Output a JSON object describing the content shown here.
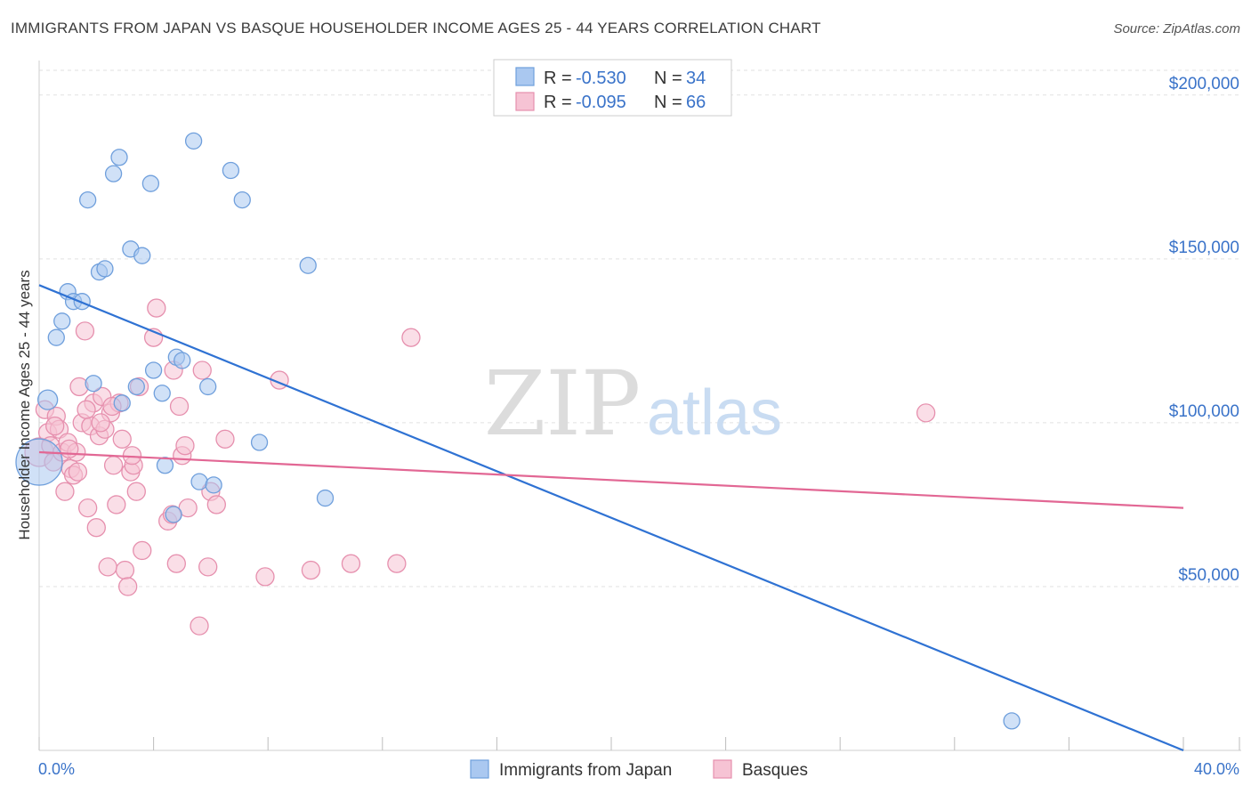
{
  "title": "IMMIGRANTS FROM JAPAN VS BASQUE HOUSEHOLDER INCOME AGES 25 - 44 YEARS CORRELATION CHART",
  "source": "Source: ZipAtlas.com",
  "watermark": {
    "zip": "ZIP",
    "atlas": "atlas"
  },
  "colors": {
    "japan_fill": "#aac8f0",
    "japan_stroke": "#6f9fdc",
    "japan_line": "#2f72d3",
    "basque_fill": "#f6c3d4",
    "basque_stroke": "#e690ae",
    "basque_line": "#e26794",
    "axis_label": "#3a73c9",
    "grid": "#e2e2e2"
  },
  "legend": {
    "r_label": "R =",
    "n_label": "N =",
    "rows": [
      {
        "series": "japan",
        "r": "-0.530",
        "n": "34"
      },
      {
        "series": "basque",
        "r": "-0.095",
        "n": "66"
      }
    ]
  },
  "chart_data": {
    "type": "scatter",
    "title": "IMMIGRANTS FROM JAPAN VS BASQUE HOUSEHOLDER INCOME AGES 25 - 44 YEARS CORRELATION CHART",
    "xlabel": "",
    "ylabel": "Householder Income Ages 25 - 44 years",
    "xlim": [
      0,
      40
    ],
    "ylim": [
      0,
      210000
    ],
    "x_tick_labels": {
      "min": "0.0%",
      "max": "40.0%"
    },
    "y_ticks": [
      {
        "value": 50000,
        "label": "$50,000"
      },
      {
        "value": 100000,
        "label": "$100,000"
      },
      {
        "value": 150000,
        "label": "$150,000"
      },
      {
        "value": 200000,
        "label": "$200,000"
      }
    ],
    "grid": true,
    "series": [
      {
        "name": "Immigrants from Japan",
        "key": "japan",
        "trend": {
          "x0": 0,
          "y0": 142000,
          "x1": 40,
          "y1": 0
        },
        "points": [
          [
            0.0,
            88000,
            26
          ],
          [
            0.3,
            107000,
            11
          ],
          [
            0.6,
            126000,
            9
          ],
          [
            0.8,
            131000,
            9
          ],
          [
            1.0,
            140000,
            9
          ],
          [
            1.2,
            137000,
            9
          ],
          [
            1.5,
            137000,
            9
          ],
          [
            1.7,
            168000,
            9
          ],
          [
            1.9,
            112000,
            9
          ],
          [
            2.1,
            146000,
            9
          ],
          [
            2.3,
            147000,
            9
          ],
          [
            2.6,
            176000,
            9
          ],
          [
            2.8,
            181000,
            9
          ],
          [
            2.9,
            106000,
            9
          ],
          [
            3.2,
            153000,
            9
          ],
          [
            3.4,
            111000,
            9
          ],
          [
            3.6,
            151000,
            9
          ],
          [
            3.9,
            173000,
            9
          ],
          [
            4.0,
            116000,
            9
          ],
          [
            4.3,
            109000,
            9
          ],
          [
            4.4,
            87000,
            9
          ],
          [
            4.7,
            72000,
            9
          ],
          [
            4.8,
            120000,
            9
          ],
          [
            5.0,
            119000,
            9
          ],
          [
            5.4,
            186000,
            9
          ],
          [
            5.6,
            82000,
            9
          ],
          [
            5.9,
            111000,
            9
          ],
          [
            6.1,
            81000,
            9
          ],
          [
            6.7,
            177000,
            9
          ],
          [
            7.1,
            168000,
            9
          ],
          [
            7.7,
            94000,
            9
          ],
          [
            9.4,
            148000,
            9
          ],
          [
            10.0,
            77000,
            9
          ],
          [
            34.0,
            9000,
            9
          ]
        ]
      },
      {
        "name": "Basques",
        "key": "basque",
        "trend": {
          "x0": 0,
          "y0": 91000,
          "x1": 40,
          "y1": 74000
        },
        "points": [
          [
            0.0,
            91000,
            16
          ],
          [
            0.2,
            104000,
            10
          ],
          [
            0.3,
            97000,
            10
          ],
          [
            0.4,
            93000,
            10
          ],
          [
            0.5,
            88000,
            10
          ],
          [
            0.6,
            102000,
            10
          ],
          [
            0.7,
            98000,
            10
          ],
          [
            0.8,
            91000,
            10
          ],
          [
            0.9,
            79000,
            10
          ],
          [
            1.0,
            94000,
            10
          ],
          [
            1.1,
            86000,
            10
          ],
          [
            1.2,
            84000,
            10
          ],
          [
            1.3,
            91000,
            10
          ],
          [
            1.4,
            111000,
            10
          ],
          [
            1.5,
            100000,
            10
          ],
          [
            1.6,
            128000,
            10
          ],
          [
            1.7,
            74000,
            10
          ],
          [
            1.8,
            99000,
            10
          ],
          [
            1.9,
            106000,
            10
          ],
          [
            2.0,
            68000,
            10
          ],
          [
            2.1,
            96000,
            10
          ],
          [
            2.2,
            108000,
            10
          ],
          [
            2.3,
            98000,
            10
          ],
          [
            2.4,
            56000,
            10
          ],
          [
            2.5,
            103000,
            10
          ],
          [
            2.6,
            87000,
            10
          ],
          [
            2.7,
            75000,
            10
          ],
          [
            2.8,
            106000,
            10
          ],
          [
            2.9,
            95000,
            10
          ],
          [
            3.0,
            55000,
            10
          ],
          [
            3.1,
            50000,
            10
          ],
          [
            3.2,
            85000,
            10
          ],
          [
            3.3,
            87000,
            10
          ],
          [
            3.4,
            79000,
            10
          ],
          [
            3.5,
            111000,
            10
          ],
          [
            3.6,
            61000,
            10
          ],
          [
            4.0,
            126000,
            10
          ],
          [
            4.1,
            135000,
            10
          ],
          [
            4.5,
            70000,
            10
          ],
          [
            4.7,
            116000,
            10
          ],
          [
            4.8,
            57000,
            10
          ],
          [
            4.9,
            105000,
            10
          ],
          [
            5.0,
            90000,
            10
          ],
          [
            5.1,
            93000,
            10
          ],
          [
            5.2,
            74000,
            10
          ],
          [
            5.7,
            116000,
            10
          ],
          [
            5.9,
            56000,
            10
          ],
          [
            6.0,
            79000,
            10
          ],
          [
            6.2,
            75000,
            10
          ],
          [
            6.5,
            95000,
            10
          ],
          [
            7.9,
            53000,
            10
          ],
          [
            8.4,
            113000,
            10
          ],
          [
            9.5,
            55000,
            10
          ],
          [
            10.9,
            57000,
            10
          ],
          [
            12.5,
            57000,
            10
          ],
          [
            13.0,
            126000,
            10
          ],
          [
            31.0,
            103000,
            10
          ],
          [
            1.05,
            92000,
            10
          ],
          [
            2.15,
            100000,
            10
          ],
          [
            0.55,
            99000,
            10
          ],
          [
            1.65,
            104000,
            10
          ],
          [
            3.25,
            90000,
            10
          ],
          [
            4.65,
            72000,
            10
          ],
          [
            5.6,
            38000,
            10
          ],
          [
            1.35,
            85000,
            10
          ],
          [
            2.55,
            105000,
            10
          ]
        ]
      }
    ]
  }
}
